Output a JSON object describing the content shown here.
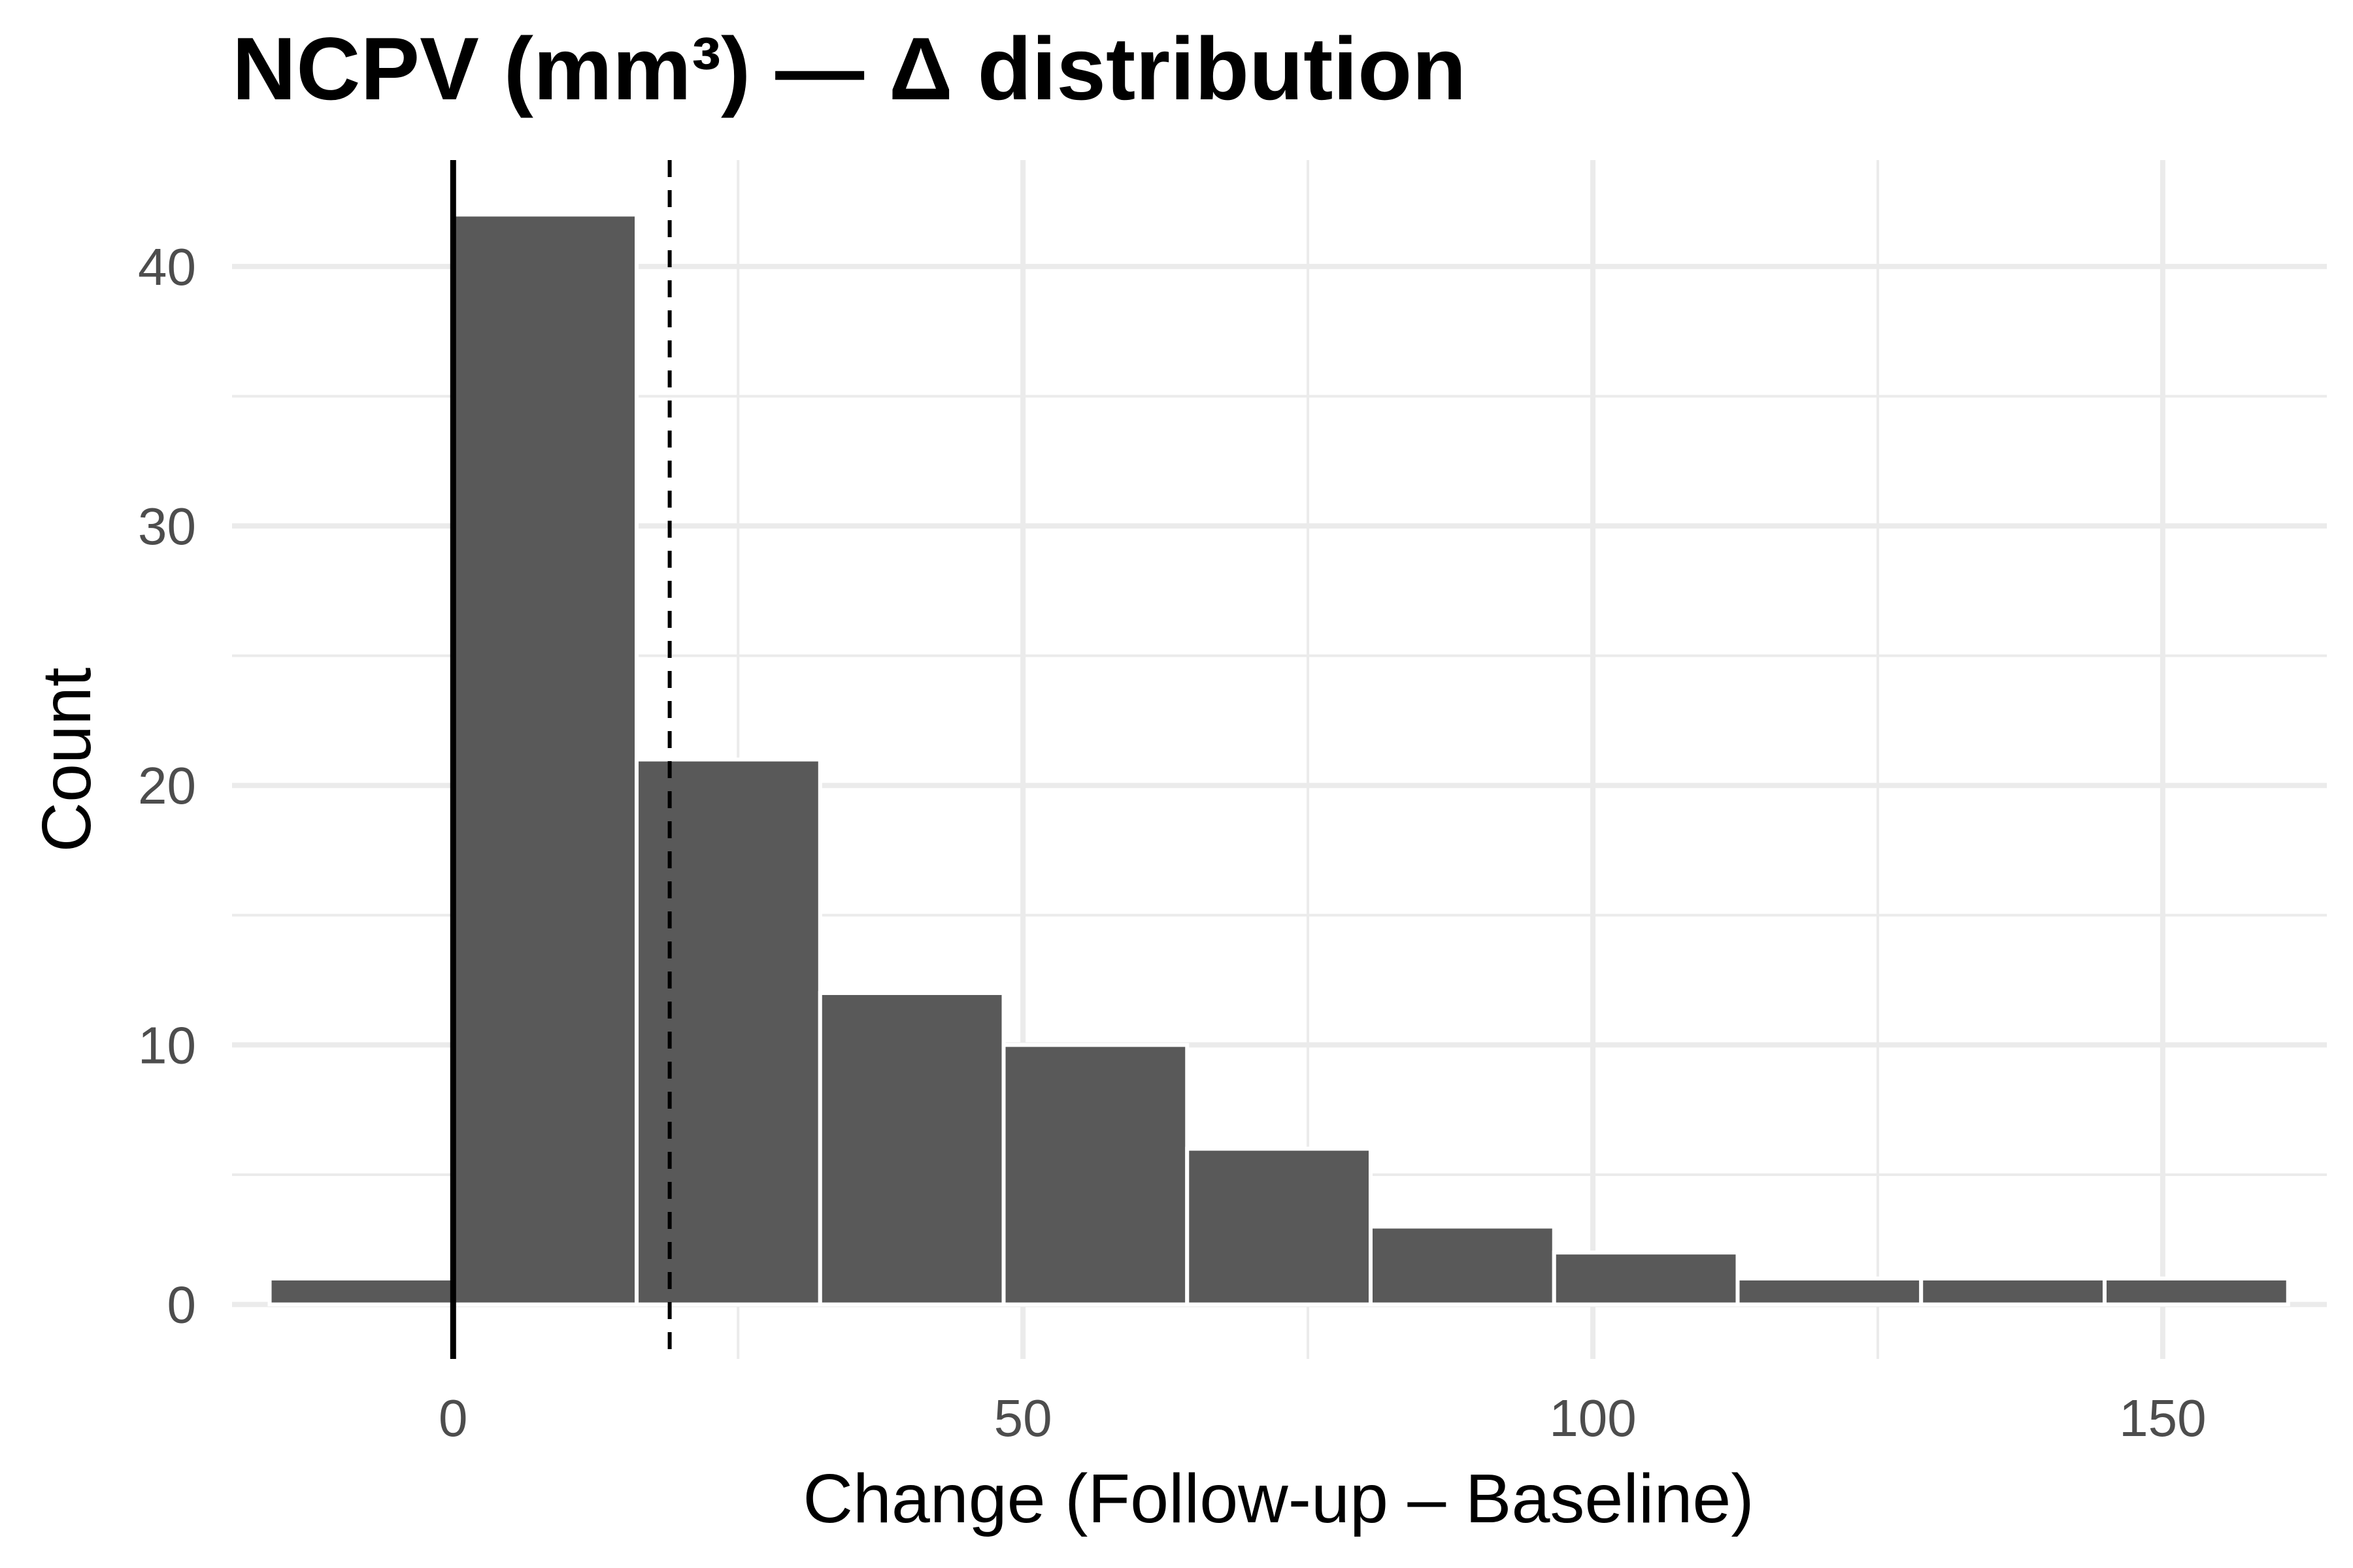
{
  "chart_data": {
    "type": "bar",
    "title": "NCPV (mm³) — Δ distribution",
    "xlabel": "Change (Follow-up – Baseline)",
    "ylabel": "Count",
    "xlim": [
      -19.4,
      164.4
    ],
    "ylim": [
      -2.1,
      44.1
    ],
    "x_ticks": [
      0,
      50,
      100,
      150
    ],
    "y_ticks": [
      0,
      10,
      20,
      30,
      40
    ],
    "bins": [
      {
        "x0": -16.1,
        "x1": 0.0,
        "count": 1
      },
      {
        "x0": 0.0,
        "x1": 16.1,
        "count": 42
      },
      {
        "x0": 16.1,
        "x1": 32.2,
        "count": 21
      },
      {
        "x0": 32.2,
        "x1": 48.3,
        "count": 12
      },
      {
        "x0": 48.3,
        "x1": 64.4,
        "count": 10
      },
      {
        "x0": 64.4,
        "x1": 80.5,
        "count": 6
      },
      {
        "x0": 80.5,
        "x1": 96.6,
        "count": 3
      },
      {
        "x0": 96.6,
        "x1": 112.7,
        "count": 2
      },
      {
        "x0": 112.7,
        "x1": 128.8,
        "count": 1
      },
      {
        "x0": 128.8,
        "x1": 144.9,
        "count": 1
      },
      {
        "x0": 144.9,
        "x1": 161.0,
        "count": 1
      }
    ],
    "reference_lines": [
      {
        "x": 0,
        "style": "solid"
      },
      {
        "x": 19,
        "style": "dashed"
      }
    ],
    "grid": true,
    "bar_color": "#595959",
    "bar_edge_color": "#ffffff",
    "gridline_color": "#ebebeb"
  }
}
